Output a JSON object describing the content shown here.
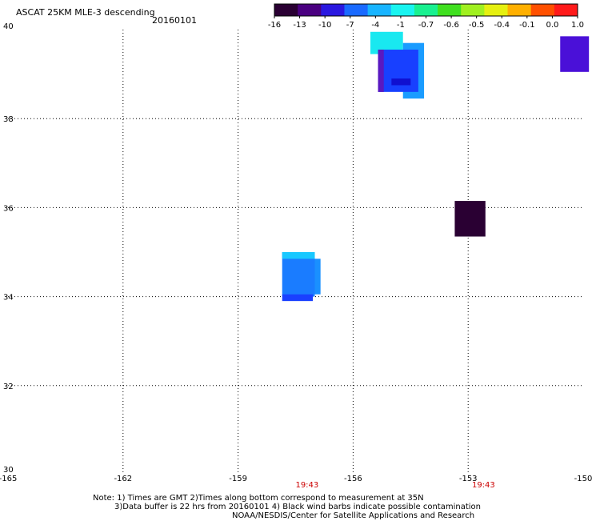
{
  "header": {
    "title": "ASCAT 25KM MLE-3 descending",
    "date": "20160101"
  },
  "colorbar": {
    "labels": [
      "-16",
      "-13",
      "-10",
      "-7",
      "-4",
      "-1",
      "-0.7",
      "-0.6",
      "-0.5",
      "-0.4",
      "-0.1",
      "0.0",
      "1.0"
    ],
    "colors": [
      "#2a0033",
      "#4a0080",
      "#2a18e0",
      "#1a6aff",
      "#18b4ff",
      "#19f4f0",
      "#19f090",
      "#40e020",
      "#a0f020",
      "#e6f010",
      "#ffb000",
      "#ff5000",
      "#ff1a1a"
    ]
  },
  "map": {
    "lon_ticks": [
      "-165",
      "-162",
      "-159",
      "-156",
      "-153",
      "-150"
    ],
    "lat_ticks": [
      "40",
      "38",
      "36",
      "34",
      "32",
      "30"
    ],
    "lon_range": [
      -165,
      -150
    ],
    "lat_range": [
      30,
      40
    ],
    "time_labels": [
      {
        "lon": -157.2,
        "text": "19:43"
      },
      {
        "lon": -152.6,
        "text": "19:43"
      }
    ],
    "time_color": "#cc0000",
    "swaths": [
      {
        "lon0": -155.55,
        "lat0": 39.45,
        "lon1": -154.7,
        "lat1": 39.95,
        "color": "#19e8f0"
      },
      {
        "lon0": -154.7,
        "lat0": 38.45,
        "lon1": -154.15,
        "lat1": 39.7,
        "color": "#1a9cff"
      },
      {
        "lon0": -155.35,
        "lat0": 38.6,
        "lon1": -154.3,
        "lat1": 39.55,
        "color": "#1840ff"
      },
      {
        "lon0": -155.35,
        "lat0": 38.6,
        "lon1": -155.2,
        "lat1": 39.55,
        "color": "#5a18c0"
      },
      {
        "lon0": -155.0,
        "lat0": 38.75,
        "lon1": -154.5,
        "lat1": 38.9,
        "color": "#1010d0"
      },
      {
        "lon0": -150.6,
        "lat0": 39.05,
        "lon1": -149.85,
        "lat1": 39.85,
        "color": "#4a10d8"
      },
      {
        "lon0": -153.35,
        "lat0": 35.35,
        "lon1": -152.55,
        "lat1": 36.15,
        "color": "#2a0033"
      },
      {
        "lon0": -157.05,
        "lat0": 34.05,
        "lon1": -156.85,
        "lat1": 34.85,
        "color": "#1a90ff"
      },
      {
        "lon0": -157.85,
        "lat0": 34.0,
        "lon1": -157.0,
        "lat1": 35.0,
        "color": "#1a7cff"
      },
      {
        "lon0": -157.85,
        "lat0": 34.85,
        "lon1": -157.0,
        "lat1": 35.0,
        "color": "#19c8ff"
      },
      {
        "lon0": -157.85,
        "lat0": 33.9,
        "lon1": -157.05,
        "lat1": 34.05,
        "color": "#1a40ff"
      }
    ]
  },
  "footer": {
    "note_line1": "Note: 1) Times are GMT 2)Times along bottom correspond to measurement at 35N",
    "note_line2": "3)Data buffer is 22 hrs from 20160101 4) Black wind barbs indicate possible contamination",
    "credit": "NOAA/NESDIS/Center for Satellite Applications and Research"
  }
}
